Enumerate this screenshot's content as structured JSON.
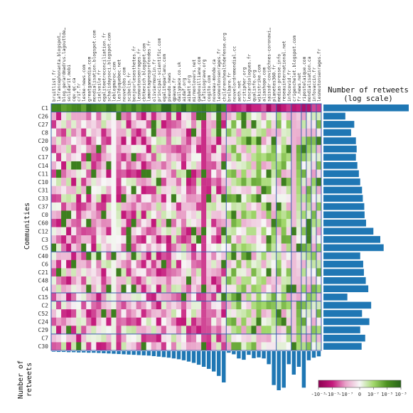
{
  "chart_data": {
    "type": "heatmap",
    "title_right_line1": "Number of retweets",
    "title_right_line2": "(log scale)",
    "ylabel": "Communities",
    "bottom_label_line1": "Number of",
    "bottom_label_line2": "retweets",
    "colorbar_ticks": [
      "-10⁻³",
      "-10⁻⁵",
      "-10⁻⁷",
      "0",
      "10⁻⁷",
      "10⁻⁵",
      "10⁻³"
    ],
    "colorbar_range": [
      -1,
      1
    ],
    "columns": [
      "bruitlist.fr",
      "lafrancephonanta.blogspot…",
      "blog.gerardmadrus.lagouttde…",
      "solidarit.mobi",
      "cqv.qc.ca",
      "crif.fr",
      "leske-news.com",
      "greatgamendia.com",
      "mondialisation.blogspot.com",
      "cielvoile.fr",
      "egaliteetreconciliation.fr",
      "schalidaysoci.blogspot.com",
      "leblogmaroc.com",
      "les7duquebec.net",
      "nouvelobs.com",
      "scibolin.fr",
      "bonjourlesesthetes.fr",
      "lesmoutonsenrages.fr",
      "cbtkevich.blogspot.com",
      "lamontagnesprofondes.fr",
      "oliviermoulin.fr",
      "principal-scientific.com",
      "egaliteparlanu.com",
      "pseudo.news",
      "qpauve.fr",
      "dailypace.co.uk",
      "aidaf.org",
      "aibatt.org",
      "mirmonlovers.net",
      "gaybouilliane.com",
      "lafisiograve.org",
      "cogito.com",
      "nouveau-monde.ca",
      "lesmoutonsenrages.fr",
      "childrenshealthdefense.org",
      "brolbare.fr",
      "nouvelordremondial.cc",
      "aoth.net",
      "critipher.org",
      "lescardiologues.fr",
      "qualinfo.org",
      "wikistrike.com",
      "aliashopo.com",
      "saissdr-covidchnes-coronavi…",
      "planetes360.fr",
      "medias-presse.info",
      "reseauinternational.net",
      "infocovid.fr",
      "crigenchelet.blogspot.com",
      "fr.news.net",
      "ripostelaique.com",
      "mondialisation.ca",
      "infovaccin.fr",
      "lesmoutonsenrages.fr"
    ],
    "rows": [
      "C1",
      "C26",
      "C27",
      "C8",
      "C20",
      "C9",
      "C17",
      "C14",
      "C11",
      "C10",
      "C31",
      "C33",
      "C37",
      "C0",
      "C60",
      "C12",
      "C3",
      "C5",
      "C40",
      "C6",
      "C21",
      "C48",
      "C4",
      "C15",
      "C2",
      "C52",
      "C24",
      "C29",
      "C7",
      "C30"
    ],
    "row_retweets": [
      5200,
      9,
      22,
      16,
      26,
      28,
      26,
      30,
      35,
      40,
      48,
      52,
      60,
      62,
      72,
      150,
      300,
      420,
      40,
      54,
      58,
      70,
      90,
      11,
      120,
      48,
      100,
      40,
      66,
      46
    ],
    "column_retweets": [
      2,
      3,
      3,
      4,
      4,
      5,
      5,
      6,
      6,
      7,
      8,
      9,
      10,
      11,
      12,
      13,
      14,
      15,
      16,
      17,
      19,
      21,
      23,
      25,
      28,
      31,
      35,
      40,
      45,
      52,
      60,
      68,
      78,
      95,
      120,
      6,
      12,
      28,
      33,
      14,
      27,
      24,
      28,
      50,
      130,
      150,
      140,
      50,
      90,
      60,
      140,
      35,
      25,
      20
    ],
    "column_groups": [
      35,
      10,
      3,
      2,
      1,
      1,
      1,
      1
    ],
    "row_groups": [
      18,
      5,
      1,
      4,
      2
    ]
  }
}
